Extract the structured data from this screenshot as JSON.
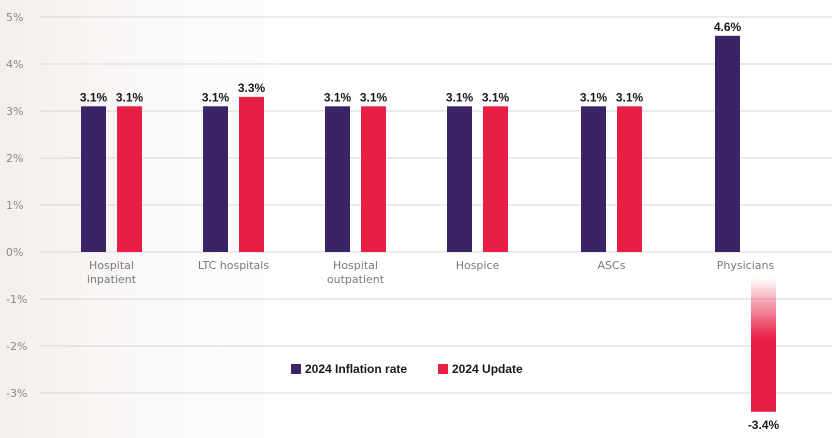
{
  "chart_data": {
    "type": "bar",
    "categories": [
      [
        "Hospital",
        "inpatient"
      ],
      [
        "LTC hospitals"
      ],
      [
        "Hospital",
        "outpatient"
      ],
      [
        "Hospice"
      ],
      [
        "ASCs"
      ],
      [
        "Physicians"
      ]
    ],
    "series": [
      {
        "name": "2024 Inflation rate",
        "color": "#3b2466",
        "values": [
          3.1,
          3.1,
          3.1,
          3.1,
          3.1,
          4.6
        ],
        "labels": [
          "3.1%",
          "3.1%",
          "3.1%",
          "3.1%",
          "3.1%",
          "4.6%"
        ]
      },
      {
        "name": "2024 Update",
        "color": "#e81f44",
        "values": [
          3.1,
          3.3,
          3.1,
          3.1,
          3.1,
          -3.4
        ],
        "labels": [
          "3.1%",
          "3.3%",
          "3.1%",
          "3.1%",
          "3.1%",
          "-3.4%"
        ]
      }
    ],
    "yticks": [
      "5%",
      "4%",
      "3%",
      "2%",
      "1%",
      "0%",
      "-1%",
      "-2%",
      "-3%"
    ],
    "ylim": [
      -3.4,
      5
    ],
    "grid": true,
    "legend_position": "bottom-center"
  }
}
